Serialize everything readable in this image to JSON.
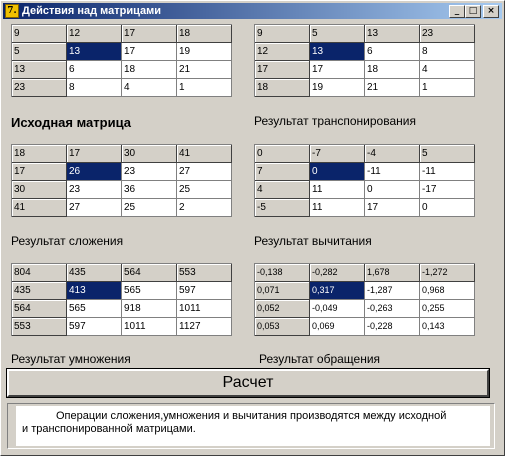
{
  "window": {
    "title": "Действия над матрицами",
    "icon_text": "7.",
    "min_glyph": "_",
    "max_glyph": "□",
    "close_glyph": "×"
  },
  "matrices": {
    "source": [
      [
        "9",
        "12",
        "17",
        "18"
      ],
      [
        "5",
        "13",
        "17",
        "19"
      ],
      [
        "13",
        "6",
        "18",
        "21"
      ],
      [
        "23",
        "8",
        "4",
        "1"
      ]
    ],
    "transpose": [
      [
        "9",
        "5",
        "13",
        "23"
      ],
      [
        "12",
        "13",
        "6",
        "8"
      ],
      [
        "17",
        "17",
        "18",
        "4"
      ],
      [
        "18",
        "19",
        "21",
        "1"
      ]
    ],
    "addition": [
      [
        "18",
        "17",
        "30",
        "41"
      ],
      [
        "17",
        "26",
        "23",
        "27"
      ],
      [
        "30",
        "23",
        "36",
        "25"
      ],
      [
        "41",
        "27",
        "25",
        "2"
      ]
    ],
    "subtraction": [
      [
        "0",
        "-7",
        "-4",
        "5"
      ],
      [
        "7",
        "0",
        "-11",
        "-11"
      ],
      [
        "4",
        "11",
        "0",
        "-17"
      ],
      [
        "-5",
        "11",
        "17",
        "0"
      ]
    ],
    "multiplication": [
      [
        "804",
        "435",
        "564",
        "553"
      ],
      [
        "435",
        "413",
        "565",
        "597"
      ],
      [
        "564",
        "565",
        "918",
        "1011"
      ],
      [
        "553",
        "597",
        "1011",
        "1127"
      ]
    ],
    "inverse": [
      [
        "-0,138",
        "-0,282",
        "1,678",
        "-1,272"
      ],
      [
        "0,071",
        "0,317",
        "-1,287",
        "0,968"
      ],
      [
        "0,052",
        "-0,049",
        "-0,263",
        "0,255"
      ],
      [
        "0,053",
        "0,069",
        "-0,228",
        "0,143"
      ]
    ]
  },
  "labels": {
    "source": "Исходная матрица",
    "transpose": "Результат транспонирования",
    "addition": "Результат сложения",
    "subtraction": "Результат вычитания",
    "multiplication": "Результат умножения",
    "inverse": "Результат обращения"
  },
  "calc_button": "Расчет",
  "note": {
    "line1": "Операции сложения,умножения и вычитания производятся между исходной",
    "line2": "и транспонированной матрицами."
  }
}
